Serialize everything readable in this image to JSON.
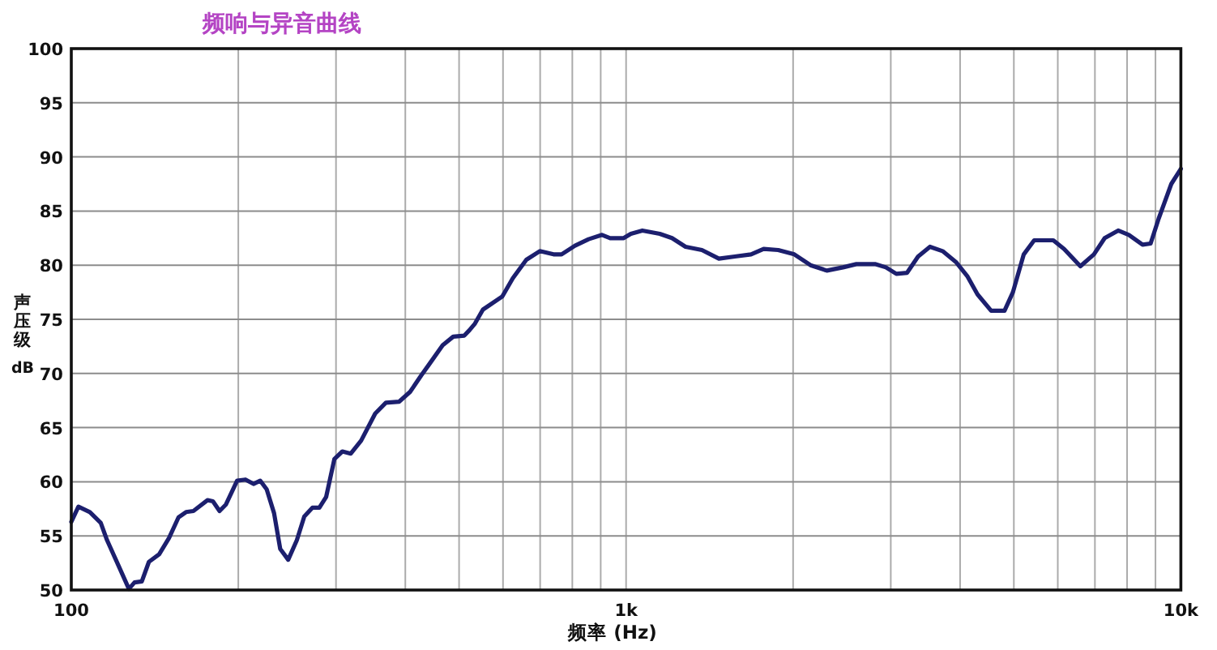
{
  "chart_data": {
    "type": "line",
    "title": "频响与异音曲线",
    "xlabel": "频率 (Hz)",
    "ylabel": "声压级 dB",
    "log": "x",
    "grid": true,
    "color": "#1c1f6e",
    "xlim": [
      100,
      10000
    ],
    "ylim": [
      50,
      100
    ],
    "xticks": [
      100,
      {
        "value": 200,
        "label": null
      },
      {
        "value": 300,
        "label": null
      },
      {
        "value": 400,
        "label": null
      },
      {
        "value": 500,
        "label": null
      },
      {
        "value": 600,
        "label": null
      },
      {
        "value": 700,
        "label": null
      },
      {
        "value": 800,
        "label": null
      },
      {
        "value": 900,
        "label": null
      },
      {
        "value": 1000,
        "label": "1k"
      },
      {
        "value": 2000,
        "label": null
      },
      {
        "value": 3000,
        "label": null
      },
      {
        "value": 4000,
        "label": null
      },
      {
        "value": 5000,
        "label": null
      },
      {
        "value": 6000,
        "label": null
      },
      {
        "value": 7000,
        "label": null
      },
      {
        "value": 8000,
        "label": null
      },
      {
        "value": 9000,
        "label": null
      },
      {
        "value": 10000,
        "label": "10k"
      }
    ],
    "yticks": [
      50,
      55,
      60,
      65,
      70,
      75,
      80,
      85,
      90,
      95,
      100
    ],
    "x": [
      100,
      103,
      108,
      113,
      116,
      122,
      127,
      130,
      134,
      138,
      144,
      150,
      156,
      161,
      166,
      176,
      180,
      185,
      190,
      199,
      206,
      213,
      219,
      225,
      232,
      238,
      246,
      255,
      263,
      272,
      280,
      288,
      298,
      308,
      319,
      333,
      353,
      369,
      390,
      408,
      427,
      441,
      467,
      488,
      511,
      522,
      534,
      552,
      598,
      625,
      661,
      699,
      740,
      765,
      809,
      856,
      905,
      936,
      990,
      1020,
      1070,
      1150,
      1210,
      1280,
      1370,
      1470,
      1570,
      1680,
      1770,
      1880,
      2010,
      2150,
      2300,
      2460,
      2600,
      2810,
      2940,
      3070,
      3210,
      3360,
      3530,
      3720,
      3930,
      4120,
      4300,
      4550,
      4810,
      4980,
      5210,
      5440,
      5890,
      6160,
      6590,
      6970,
      7290,
      7710,
      8060,
      8530,
      8820,
      9120,
      9610,
      10000
    ],
    "values": [
      56.3,
      57.7,
      57.2,
      56.2,
      54.6,
      52.1,
      50.1,
      50.7,
      50.8,
      52.6,
      53.3,
      54.8,
      56.7,
      57.2,
      57.3,
      58.3,
      58.2,
      57.3,
      57.9,
      60.1,
      60.2,
      59.8,
      60.1,
      59.3,
      57.1,
      53.8,
      52.8,
      54.6,
      56.8,
      57.6,
      57.6,
      58.6,
      62.1,
      62.8,
      62.6,
      63.8,
      66.3,
      67.3,
      67.4,
      68.3,
      69.8,
      70.8,
      72.6,
      73.4,
      73.5,
      74.0,
      74.6,
      75.9,
      77.1,
      78.8,
      80.5,
      81.3,
      81.0,
      81.0,
      81.8,
      82.4,
      82.8,
      82.5,
      82.5,
      82.9,
      83.2,
      82.9,
      82.5,
      81.7,
      81.4,
      80.6,
      80.8,
      81.0,
      81.5,
      81.4,
      81.0,
      80.0,
      79.5,
      79.8,
      80.1,
      80.1,
      79.8,
      79.2,
      79.3,
      80.8,
      81.7,
      81.3,
      80.3,
      79.0,
      77.3,
      75.8,
      75.8,
      77.5,
      81.0,
      82.3,
      82.3,
      81.5,
      79.9,
      81.0,
      82.5,
      83.2,
      82.8,
      81.9,
      82.0,
      84.3,
      87.5,
      88.9
    ]
  }
}
